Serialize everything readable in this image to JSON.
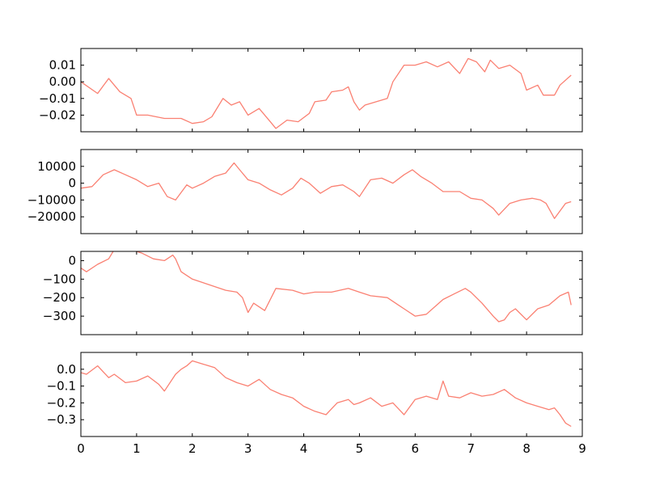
{
  "figure": {
    "background": "#ffffff",
    "line_color": "#fa8072",
    "axis_color": "#000000"
  },
  "chart_data": [
    {
      "type": "line",
      "title": "",
      "xlabel": "",
      "ylabel": "",
      "xlim": [
        0,
        9
      ],
      "ylim": [
        -0.03,
        0.02
      ],
      "x_ticks": [
        0,
        1,
        2,
        3,
        4,
        5,
        6,
        7,
        8,
        9
      ],
      "x_tick_labels_visible": false,
      "y_ticks": [
        -0.02,
        -0.01,
        0.0,
        0.01
      ],
      "y_tick_labels": [
        "−0.02",
        "−0.01",
        "0.00",
        "0.01"
      ],
      "grid": false,
      "series": [
        {
          "x": [
            0,
            0.3,
            0.5,
            0.7,
            0.9,
            1.0,
            1.2,
            1.5,
            1.8,
            2.0,
            2.2,
            2.35,
            2.55,
            2.7,
            2.85,
            3.0,
            3.2,
            3.4,
            3.5,
            3.7,
            3.9,
            4.1,
            4.2,
            4.4,
            4.5,
            4.7,
            4.8,
            4.9,
            5.0,
            5.1,
            5.3,
            5.5,
            5.6,
            5.8,
            6.0,
            6.2,
            6.4,
            6.6,
            6.8,
            6.95,
            7.1,
            7.25,
            7.35,
            7.5,
            7.7,
            7.9,
            8.0,
            8.2,
            8.3,
            8.5,
            8.6,
            8.8
          ],
          "y": [
            0.0,
            -0.007,
            0.002,
            -0.006,
            -0.01,
            -0.02,
            -0.02,
            -0.022,
            -0.022,
            -0.025,
            -0.024,
            -0.021,
            -0.01,
            -0.014,
            -0.012,
            -0.02,
            -0.016,
            -0.024,
            -0.028,
            -0.023,
            -0.024,
            -0.019,
            -0.012,
            -0.011,
            -0.006,
            -0.005,
            -0.003,
            -0.012,
            -0.017,
            -0.014,
            -0.012,
            -0.01,
            0.0,
            0.01,
            0.01,
            0.012,
            0.009,
            0.012,
            0.005,
            0.014,
            0.012,
            0.006,
            0.013,
            0.008,
            0.01,
            0.005,
            -0.005,
            -0.002,
            -0.008,
            -0.008,
            -0.002,
            0.004
          ]
        }
      ]
    },
    {
      "type": "line",
      "title": "",
      "xlabel": "",
      "ylabel": "",
      "xlim": [
        0,
        9
      ],
      "ylim": [
        -30000,
        20000
      ],
      "x_ticks": [
        0,
        1,
        2,
        3,
        4,
        5,
        6,
        7,
        8,
        9
      ],
      "x_tick_labels_visible": false,
      "y_ticks": [
        -20000,
        -10000,
        0,
        10000
      ],
      "y_tick_labels": [
        "−20000",
        "−10000",
        "0",
        "10000"
      ],
      "grid": false,
      "series": [
        {
          "x": [
            0,
            0.2,
            0.4,
            0.6,
            0.8,
            1.0,
            1.2,
            1.4,
            1.55,
            1.7,
            1.9,
            2.0,
            2.2,
            2.4,
            2.6,
            2.75,
            2.85,
            3.0,
            3.2,
            3.4,
            3.6,
            3.8,
            3.95,
            4.1,
            4.3,
            4.5,
            4.7,
            4.9,
            5.0,
            5.2,
            5.4,
            5.6,
            5.8,
            5.95,
            6.1,
            6.3,
            6.5,
            6.8,
            7.0,
            7.2,
            7.4,
            7.5,
            7.7,
            7.9,
            8.1,
            8.25,
            8.35,
            8.5,
            8.7,
            8.8
          ],
          "y": [
            -3000,
            -2000,
            5000,
            8000,
            5000,
            2000,
            -2000,
            0,
            -8000,
            -10000,
            -1000,
            -3000,
            0,
            4000,
            6000,
            12000,
            8000,
            2000,
            0,
            -4000,
            -7000,
            -3000,
            3000,
            0,
            -6000,
            -2000,
            -1000,
            -5000,
            -8000,
            2000,
            3000,
            0,
            5000,
            8000,
            4000,
            0,
            -5000,
            -5000,
            -9000,
            -10000,
            -15000,
            -19000,
            -12000,
            -10000,
            -9000,
            -10000,
            -12000,
            -21000,
            -12000,
            -11000
          ]
        }
      ]
    },
    {
      "type": "line",
      "title": "",
      "xlabel": "",
      "ylabel": "",
      "xlim": [
        0,
        9
      ],
      "ylim": [
        -400,
        50
      ],
      "x_ticks": [
        0,
        1,
        2,
        3,
        4,
        5,
        6,
        7,
        8,
        9
      ],
      "x_tick_labels_visible": false,
      "y_ticks": [
        -300,
        -200,
        -100,
        0
      ],
      "y_tick_labels": [
        "−300",
        "−200",
        "−100",
        "0"
      ],
      "grid": false,
      "series": [
        {
          "x": [
            0,
            0.1,
            0.3,
            0.5,
            0.6,
            0.8,
            1.0,
            1.1,
            1.3,
            1.5,
            1.65,
            1.7,
            1.8,
            2.0,
            2.2,
            2.4,
            2.6,
            2.8,
            2.9,
            3.0,
            3.1,
            3.3,
            3.5,
            3.8,
            4.0,
            4.2,
            4.5,
            4.8,
            5.0,
            5.2,
            5.5,
            5.7,
            5.8,
            6.0,
            6.2,
            6.5,
            6.7,
            6.9,
            7.0,
            7.2,
            7.4,
            7.5,
            7.6,
            7.7,
            7.8,
            8.0,
            8.2,
            8.4,
            8.6,
            8.75,
            8.8
          ],
          "y": [
            -40,
            -60,
            -20,
            10,
            60,
            60,
            50,
            40,
            10,
            0,
            30,
            10,
            -60,
            -100,
            -120,
            -140,
            -160,
            -170,
            -200,
            -280,
            -230,
            -270,
            -150,
            -160,
            -180,
            -170,
            -170,
            -150,
            -170,
            -190,
            -200,
            -240,
            -260,
            -300,
            -290,
            -210,
            -180,
            -150,
            -170,
            -230,
            -300,
            -330,
            -320,
            -280,
            -260,
            -320,
            -260,
            -240,
            -190,
            -170,
            -240
          ]
        }
      ]
    },
    {
      "type": "line",
      "title": "",
      "xlabel": "",
      "ylabel": "",
      "xlim": [
        0,
        9
      ],
      "ylim": [
        -0.4,
        0.1
      ],
      "x_ticks": [
        0,
        1,
        2,
        3,
        4,
        5,
        6,
        7,
        8,
        9
      ],
      "x_tick_labels": [
        "0",
        "1",
        "2",
        "3",
        "4",
        "5",
        "6",
        "7",
        "8",
        "9"
      ],
      "x_tick_labels_visible": true,
      "y_ticks": [
        -0.3,
        -0.2,
        -0.1,
        0.0
      ],
      "y_tick_labels": [
        "−0.3",
        "−0.2",
        "−0.1",
        "0.0"
      ],
      "grid": false,
      "series": [
        {
          "x": [
            0,
            0.1,
            0.3,
            0.5,
            0.6,
            0.8,
            1.0,
            1.2,
            1.4,
            1.5,
            1.7,
            1.8,
            1.9,
            2.0,
            2.2,
            2.4,
            2.6,
            2.8,
            3.0,
            3.2,
            3.4,
            3.6,
            3.8,
            4.0,
            4.2,
            4.4,
            4.6,
            4.8,
            4.9,
            5.0,
            5.2,
            5.4,
            5.6,
            5.8,
            6.0,
            6.2,
            6.4,
            6.5,
            6.6,
            6.8,
            7.0,
            7.2,
            7.4,
            7.6,
            7.8,
            8.0,
            8.2,
            8.4,
            8.5,
            8.6,
            8.7,
            8.8
          ],
          "y": [
            -0.02,
            -0.03,
            0.02,
            -0.05,
            -0.03,
            -0.08,
            -0.07,
            -0.04,
            -0.09,
            -0.13,
            -0.03,
            0.0,
            0.02,
            0.05,
            0.03,
            0.01,
            -0.05,
            -0.08,
            -0.1,
            -0.06,
            -0.12,
            -0.15,
            -0.17,
            -0.22,
            -0.25,
            -0.27,
            -0.2,
            -0.18,
            -0.21,
            -0.2,
            -0.17,
            -0.22,
            -0.2,
            -0.27,
            -0.18,
            -0.16,
            -0.18,
            -0.07,
            -0.16,
            -0.17,
            -0.14,
            -0.16,
            -0.15,
            -0.12,
            -0.17,
            -0.2,
            -0.22,
            -0.24,
            -0.23,
            -0.27,
            -0.32,
            -0.34
          ]
        }
      ]
    }
  ]
}
